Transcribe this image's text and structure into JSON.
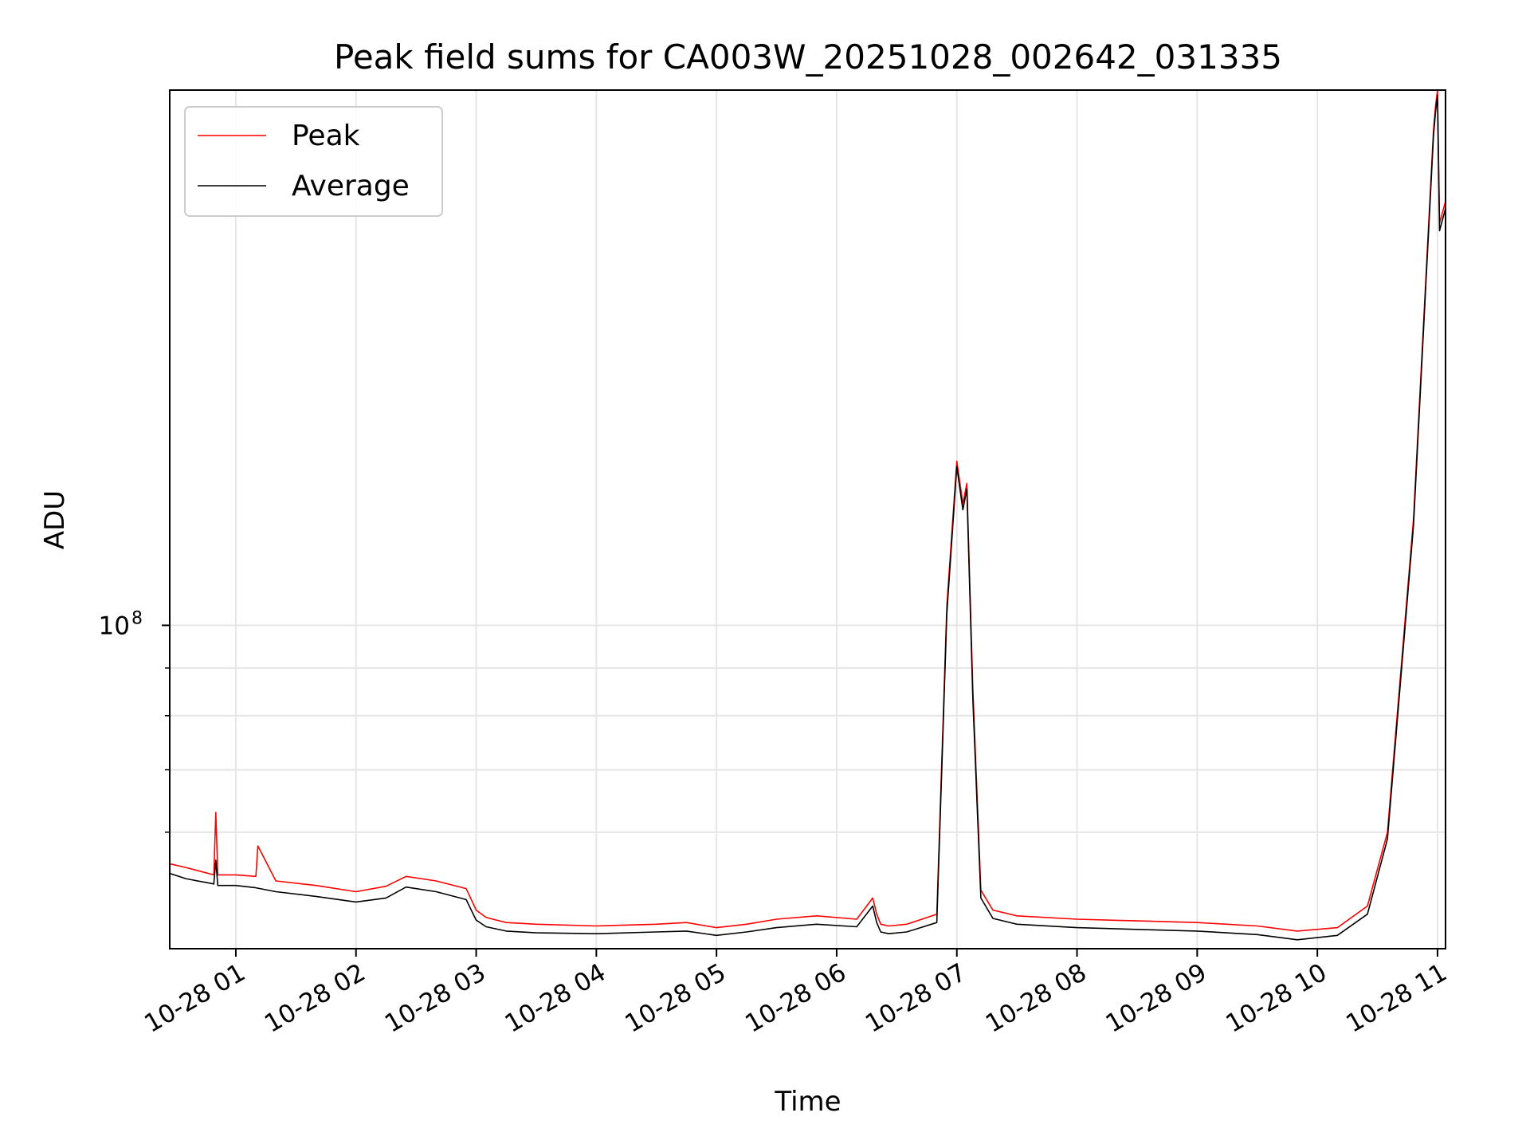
{
  "chart_data": {
    "type": "line",
    "title": "Peak field sums for CA003W_20251028_002642_031335",
    "xlabel": "Time",
    "ylabel": "ADU",
    "y_scale": "log",
    "ylim": [
      45000000,
      375000000
    ],
    "xlim": [
      "10-28 00:27",
      "10-28 11:04"
    ],
    "x_ticks": [
      "10-28 01",
      "10-28 02",
      "10-28 03",
      "10-28 04",
      "10-28 05",
      "10-28 06",
      "10-28 07",
      "10-28 08",
      "10-28 09",
      "10-28 10",
      "10-28 11"
    ],
    "y_ticks": [
      {
        "label": "10",
        "exponent": "8",
        "value": 100000000
      }
    ],
    "y_minor_ticks": [
      60000000,
      70000000,
      80000000,
      90000000
    ],
    "grid": true,
    "legend_position": "upper-left",
    "series": [
      {
        "name": "Peak",
        "color": "#ff0000",
        "x": [
          "10-28 00:27",
          "10-28 00:35",
          "10-28 00:49",
          "10-28 00:50",
          "10-28 00:51",
          "10-28 01:00",
          "10-28 01:10",
          "10-28 01:11",
          "10-28 01:20",
          "10-28 01:40",
          "10-28 02:00",
          "10-28 02:15",
          "10-28 02:25",
          "10-28 02:40",
          "10-28 02:55",
          "10-28 03:00",
          "10-28 03:05",
          "10-28 03:15",
          "10-28 03:30",
          "10-28 04:00",
          "10-28 04:30",
          "10-28 04:45",
          "10-28 05:00",
          "10-28 05:15",
          "10-28 05:30",
          "10-28 05:50",
          "10-28 06:10",
          "10-28 06:18",
          "10-28 06:20",
          "10-28 06:22",
          "10-28 06:26",
          "10-28 06:35",
          "10-28 06:50",
          "10-28 06:55",
          "10-28 07:00",
          "10-28 07:03",
          "10-28 07:05",
          "10-28 07:08",
          "10-28 07:12",
          "10-28 07:18",
          "10-28 07:30",
          "10-28 08:00",
          "10-28 08:30",
          "10-28 09:00",
          "10-28 09:30",
          "10-28 09:50",
          "10-28 10:10",
          "10-28 10:25",
          "10-28 10:35",
          "10-28 10:48",
          "10-28 10:58",
          "10-28 10:59",
          "10-28 11:00",
          "10-28 11:01",
          "10-28 11:04"
        ],
        "y": [
          55500000,
          55000000,
          54000000,
          63000000,
          54000000,
          54000000,
          53800000,
          58000000,
          53200000,
          52600000,
          51800000,
          52500000,
          53800000,
          53200000,
          52200000,
          49500000,
          48600000,
          48000000,
          47800000,
          47600000,
          47800000,
          48000000,
          47400000,
          47800000,
          48400000,
          48800000,
          48400000,
          51000000,
          49000000,
          47800000,
          47600000,
          47800000,
          49000000,
          105000000,
          150000000,
          135000000,
          142000000,
          85000000,
          52000000,
          49500000,
          48800000,
          48400000,
          48200000,
          48000000,
          47600000,
          47000000,
          47400000,
          50000000,
          60000000,
          130000000,
          340000000,
          360000000,
          375000000,
          270000000,
          285000000
        ]
      },
      {
        "name": "Average",
        "color": "#000000",
        "x": [
          "10-28 00:27",
          "10-28 00:35",
          "10-28 00:49",
          "10-28 00:50",
          "10-28 00:51",
          "10-28 01:00",
          "10-28 01:10",
          "10-28 01:20",
          "10-28 01:40",
          "10-28 02:00",
          "10-28 02:15",
          "10-28 02:25",
          "10-28 02:40",
          "10-28 02:55",
          "10-28 03:00",
          "10-28 03:05",
          "10-28 03:15",
          "10-28 03:30",
          "10-28 04:00",
          "10-28 04:30",
          "10-28 04:45",
          "10-28 05:00",
          "10-28 05:15",
          "10-28 05:30",
          "10-28 05:50",
          "10-28 06:10",
          "10-28 06:18",
          "10-28 06:20",
          "10-28 06:22",
          "10-28 06:26",
          "10-28 06:35",
          "10-28 06:50",
          "10-28 06:55",
          "10-28 07:00",
          "10-28 07:03",
          "10-28 07:05",
          "10-28 07:08",
          "10-28 07:12",
          "10-28 07:18",
          "10-28 07:30",
          "10-28 08:00",
          "10-28 08:30",
          "10-28 09:00",
          "10-28 09:30",
          "10-28 09:50",
          "10-28 10:10",
          "10-28 10:25",
          "10-28 10:35",
          "10-28 10:48",
          "10-28 10:58",
          "10-28 10:59",
          "10-28 11:00",
          "10-28 11:01",
          "10-28 11:04"
        ],
        "y": [
          54200000,
          53500000,
          52800000,
          56000000,
          52600000,
          52600000,
          52300000,
          51800000,
          51200000,
          50500000,
          51000000,
          52400000,
          51800000,
          50800000,
          48300000,
          47500000,
          47000000,
          46800000,
          46700000,
          46900000,
          47000000,
          46500000,
          46900000,
          47400000,
          47800000,
          47500000,
          50000000,
          48000000,
          46900000,
          46700000,
          46900000,
          48000000,
          103000000,
          148000000,
          133000000,
          140000000,
          83000000,
          51000000,
          48500000,
          47800000,
          47400000,
          47200000,
          47000000,
          46600000,
          46000000,
          46500000,
          49000000,
          59000000,
          128000000,
          335000000,
          355000000,
          370000000,
          265000000,
          280000000
        ]
      }
    ]
  }
}
